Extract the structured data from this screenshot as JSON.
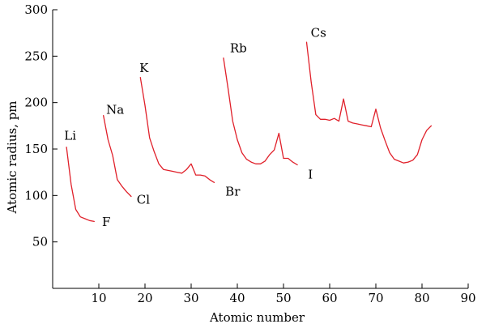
{
  "chart_data": {
    "type": "line",
    "xlabel": "Atomic number",
    "ylabel": "Atomic radius, pm",
    "xlim": [
      0,
      90
    ],
    "ylim": [
      0,
      300
    ],
    "xticks": [
      10,
      20,
      30,
      40,
      50,
      60,
      70,
      80,
      90
    ],
    "yticks": [
      50,
      100,
      150,
      200,
      250,
      300
    ],
    "grid": false,
    "line_color": "#e0202a",
    "segments": [
      {
        "x": [
          3,
          4,
          5,
          6,
          7,
          8,
          9
        ],
        "y": [
          152,
          112,
          85,
          77,
          75,
          73,
          72
        ]
      },
      {
        "x": [
          11,
          12,
          13,
          14,
          15,
          16,
          17
        ],
        "y": [
          186,
          160,
          143,
          117,
          110,
          104,
          99
        ]
      },
      {
        "x": [
          19,
          20,
          21,
          22,
          23,
          24,
          25,
          26,
          27,
          28,
          29,
          30,
          31,
          32,
          33,
          34,
          35
        ],
        "y": [
          227,
          197,
          162,
          147,
          134,
          128,
          127,
          126,
          125,
          124,
          128,
          134,
          122,
          122,
          121,
          117,
          114
        ]
      },
      {
        "x": [
          37,
          38,
          39,
          40,
          41,
          42,
          43,
          44,
          45,
          46,
          47,
          48,
          49,
          50,
          51,
          52,
          53
        ],
        "y": [
          248,
          215,
          180,
          160,
          146,
          139,
          136,
          134,
          134,
          137,
          144,
          149,
          167,
          140,
          140,
          136,
          133
        ]
      },
      {
        "x": [
          55,
          56,
          57,
          58,
          59,
          60,
          61,
          62,
          63,
          64,
          65,
          66,
          67,
          68,
          69,
          70,
          71,
          72,
          73,
          74,
          75,
          76,
          77,
          78,
          79,
          80,
          81,
          82
        ],
        "y": [
          265,
          222,
          187,
          182,
          182,
          181,
          183,
          180,
          204,
          180,
          178,
          177,
          176,
          175,
          174,
          193,
          173,
          159,
          146,
          139,
          137,
          135,
          136,
          138,
          144,
          160,
          170,
          175
        ]
      }
    ],
    "annotations": [
      {
        "text": "Li",
        "x": 2.5,
        "y": 160
      },
      {
        "text": "F",
        "x": 10.7,
        "y": 67
      },
      {
        "text": "Na",
        "x": 11.6,
        "y": 188
      },
      {
        "text": "Cl",
        "x": 18.2,
        "y": 91
      },
      {
        "text": "K",
        "x": 18.8,
        "y": 233
      },
      {
        "text": "Br",
        "x": 37.4,
        "y": 100
      },
      {
        "text": "Rb",
        "x": 38.4,
        "y": 254
      },
      {
        "text": "I",
        "x": 55.3,
        "y": 118
      },
      {
        "text": "Cs",
        "x": 55.9,
        "y": 271
      }
    ]
  }
}
